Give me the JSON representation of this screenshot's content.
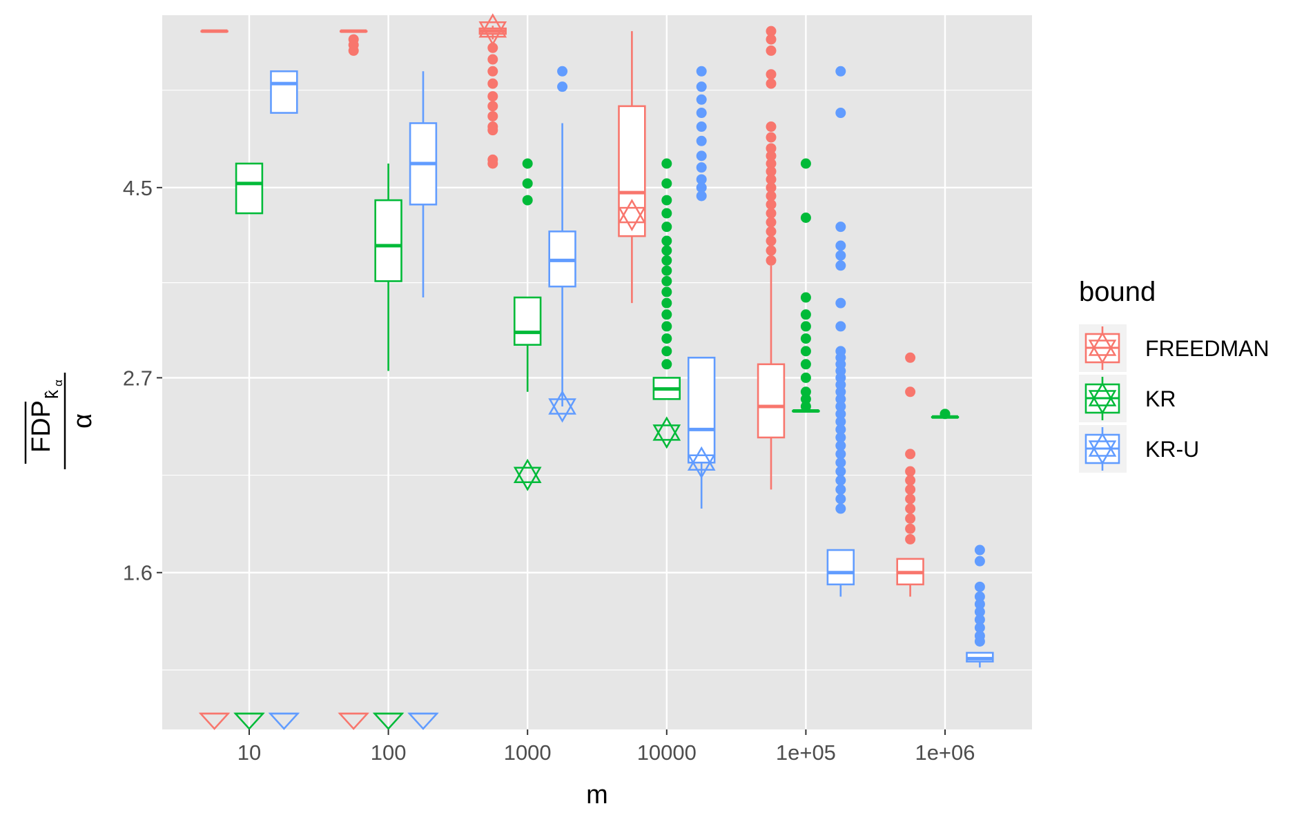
{
  "chart_data": {
    "type": "boxplot",
    "x_label": "m",
    "y_label": {
      "numerator": "FDP",
      "numerator_subscript": "k̂",
      "subscript_index": "α",
      "denominator": "α"
    },
    "x_scale": "log10",
    "y_scale": "log",
    "categories": [
      "10",
      "100",
      "1000",
      "10000",
      "1e+05",
      "1e+06"
    ],
    "y_ticks": [
      1.6,
      2.7,
      4.5
    ],
    "y_tick_labels": [
      "1.6",
      "2.7",
      "4.5"
    ],
    "ylim": [
      1.05,
      7.15
    ],
    "grid": true,
    "legend": {
      "title": "bound",
      "position": "right",
      "entries": [
        "FREEDMAN",
        "KR",
        "KR-U"
      ]
    },
    "series": [
      {
        "name": "FREEDMAN",
        "color": "#F8766D",
        "boxes": [
          {
            "group": "10",
            "q1": 6.85,
            "median": 6.85,
            "q3": 6.85,
            "whisker_low": 6.85,
            "whisker_high": 6.85,
            "outliers": [],
            "star": null,
            "floor_marker": true
          },
          {
            "group": "100",
            "q1": 6.85,
            "median": 6.85,
            "q3": 6.85,
            "whisker_low": 6.85,
            "whisker_high": 6.85,
            "outliers": [
              6.7,
              6.6,
              6.5
            ],
            "star": null,
            "floor_marker": true
          },
          {
            "group": "1000",
            "q1": 6.8,
            "median": 6.85,
            "q3": 6.9,
            "whisker_low": 6.7,
            "whisker_high": 6.95,
            "outliers": [
              6.55,
              6.35,
              6.15,
              5.95,
              5.75,
              5.6,
              5.45,
              5.3,
              5.25,
              4.85,
              4.8
            ],
            "star": 6.88,
            "floor_marker": false
          },
          {
            "group": "10000",
            "q1": 3.95,
            "median": 4.44,
            "q3": 5.6,
            "whisker_low": 3.3,
            "whisker_high": 6.85,
            "outliers": [],
            "star": 4.18,
            "floor_marker": false
          },
          {
            "group": "1e+05",
            "q1": 2.3,
            "median": 2.5,
            "q3": 2.8,
            "whisker_low": 2.0,
            "whisker_high": 3.65,
            "outliers": [
              6.85,
              6.7,
              6.5,
              6.1,
              5.95,
              5.3,
              5.15,
              5.0,
              4.9,
              4.8,
              4.7,
              4.6,
              4.5,
              4.4,
              4.3,
              4.2,
              4.1,
              4.0,
              3.9,
              3.8,
              3.7
            ],
            "star": null,
            "floor_marker": false
          },
          {
            "group": "1e+06",
            "q1": 1.55,
            "median": 1.6,
            "q3": 1.66,
            "whisker_low": 1.5,
            "whisker_high": 1.66,
            "outliers": [
              2.85,
              2.6,
              2.2,
              2.1,
              2.05,
              2.0,
              1.95,
              1.9,
              1.85,
              1.8,
              1.75
            ],
            "star": null,
            "floor_marker": false
          }
        ]
      },
      {
        "name": "KR",
        "color": "#00BA38",
        "boxes": [
          {
            "group": "10",
            "q1": 4.2,
            "median": 4.55,
            "q3": 4.8,
            "whisker_low": 4.2,
            "whisker_high": 4.8,
            "outliers": [],
            "star": null,
            "floor_marker": true
          },
          {
            "group": "100",
            "q1": 3.5,
            "median": 3.85,
            "q3": 4.35,
            "whisker_low": 2.75,
            "whisker_high": 4.8,
            "outliers": [],
            "star": null,
            "floor_marker": true
          },
          {
            "group": "1000",
            "q1": 2.95,
            "median": 3.05,
            "q3": 3.35,
            "whisker_low": 2.6,
            "whisker_high": 3.35,
            "outliers": [
              4.8,
              4.55,
              4.35
            ],
            "star": 2.08,
            "floor_marker": false
          },
          {
            "group": "10000",
            "q1": 2.55,
            "median": 2.62,
            "q3": 2.7,
            "whisker_low": 2.55,
            "whisker_high": 2.7,
            "outliers": [
              4.8,
              4.55,
              4.35,
              4.2,
              4.05,
              3.9,
              3.8,
              3.7,
              3.6,
              3.5,
              3.4,
              3.3,
              3.2,
              3.1,
              3.0,
              2.9,
              2.8
            ],
            "star": 2.33,
            "floor_marker": false
          },
          {
            "group": "1e+05",
            "q1": 2.47,
            "median": 2.47,
            "q3": 2.47,
            "whisker_low": 2.47,
            "whisker_high": 2.47,
            "outliers": [
              4.8,
              4.15,
              3.35,
              3.2,
              3.1,
              3.0,
              2.9,
              2.8,
              2.7,
              2.6,
              2.55,
              2.5
            ],
            "star": null,
            "floor_marker": false
          },
          {
            "group": "1e+06",
            "q1": 2.43,
            "median": 2.43,
            "q3": 2.43,
            "whisker_low": 2.43,
            "whisker_high": 2.43,
            "outliers": [
              2.45
            ],
            "star": null,
            "floor_marker": false
          }
        ]
      },
      {
        "name": "KR-U",
        "color": "#619CFF",
        "boxes": [
          {
            "group": "10",
            "q1": 5.5,
            "median": 5.95,
            "q3": 6.15,
            "whisker_low": 5.5,
            "whisker_high": 6.15,
            "outliers": [],
            "star": null,
            "floor_marker": true
          },
          {
            "group": "100",
            "q1": 4.3,
            "median": 4.8,
            "q3": 5.35,
            "whisker_low": 3.35,
            "whisker_high": 6.15,
            "outliers": [],
            "star": null,
            "floor_marker": true
          },
          {
            "group": "1000",
            "q1": 3.45,
            "median": 3.7,
            "q3": 4.0,
            "whisker_low": 2.5,
            "whisker_high": 5.35,
            "outliers": [
              6.15,
              5.9
            ],
            "star": 2.5,
            "floor_marker": false
          },
          {
            "group": "10000",
            "q1": 2.15,
            "median": 2.35,
            "q3": 2.85,
            "whisker_low": 1.9,
            "whisker_high": 2.85,
            "outliers": [
              6.15,
              5.9,
              5.7,
              5.5,
              5.3,
              5.1,
              4.9,
              4.75,
              4.6,
              4.5,
              4.4
            ],
            "star": 2.15,
            "floor_marker": false
          },
          {
            "group": "1e+05",
            "q1": 1.55,
            "median": 1.6,
            "q3": 1.7,
            "whisker_low": 1.5,
            "whisker_high": 1.7,
            "outliers": [
              6.15,
              5.5,
              4.05,
              3.85,
              3.75,
              3.65,
              3.3,
              3.1,
              2.9,
              2.85,
              2.8,
              2.75,
              2.7,
              2.65,
              2.6,
              2.55,
              2.5,
              2.45,
              2.4,
              2.35,
              2.3,
              2.25,
              2.2,
              2.15,
              2.1,
              2.05,
              2.0,
              1.95,
              1.9
            ],
            "star": null,
            "floor_marker": false
          },
          {
            "group": "1e+06",
            "q1": 1.26,
            "median": 1.27,
            "q3": 1.29,
            "whisker_low": 1.24,
            "whisker_high": 1.29,
            "outliers": [
              1.7,
              1.65,
              1.54,
              1.5,
              1.47,
              1.44,
              1.41,
              1.38,
              1.35,
              1.33
            ],
            "star": null,
            "floor_marker": false
          }
        ]
      }
    ]
  }
}
